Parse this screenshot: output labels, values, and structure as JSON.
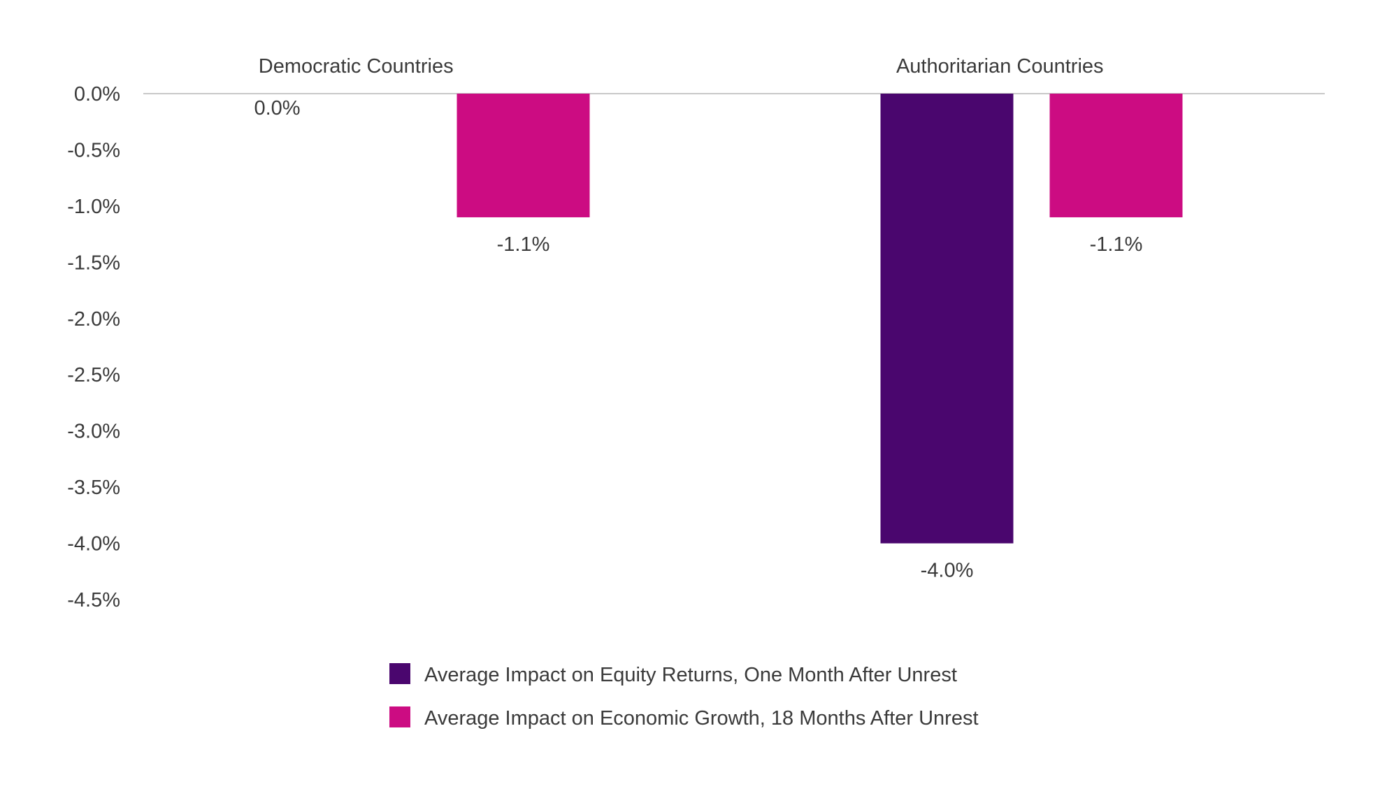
{
  "chart_data": {
    "type": "bar",
    "categories": [
      "Democratic Countries",
      "Authoritarian Countries"
    ],
    "series": [
      {
        "name": "Average Impact on Equity Returns, One Month After Unrest",
        "values": [
          0.0,
          -4.0
        ],
        "labels": [
          "0.0%",
          "-4.0%"
        ],
        "color": "#4a066e"
      },
      {
        "name": "Average Impact on Economic Growth, 18 Months After Unrest",
        "values": [
          -1.1,
          -1.1
        ],
        "labels": [
          "-1.1%",
          "-1.1%"
        ],
        "color": "#cc0c82"
      }
    ],
    "ylim": [
      -4.5,
      0.0
    ],
    "ytick_values": [
      0.0,
      -0.5,
      -1.0,
      -1.5,
      -2.0,
      -2.5,
      -3.0,
      -3.5,
      -4.0,
      -4.5
    ],
    "ytick_labels": [
      "0.0%",
      "-0.5%",
      "-1.0%",
      "-1.5%",
      "-2.0%",
      "-2.5%",
      "-3.0%",
      "-3.5%",
      "-4.0%",
      "-4.5%"
    ],
    "category_axis_position": "top",
    "legend_position": "bottom",
    "grid": false,
    "axis_line_color": "#c8c8c8"
  }
}
